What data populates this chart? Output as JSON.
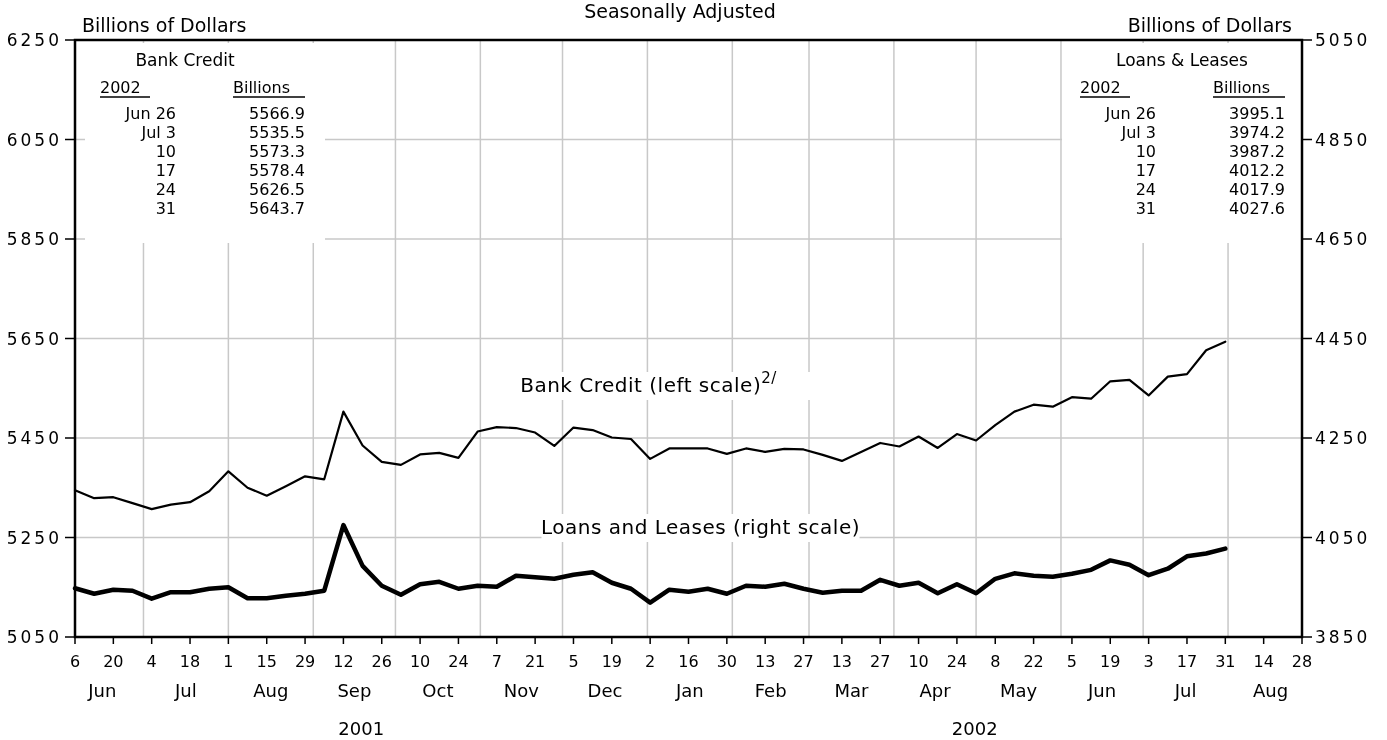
{
  "chart_data": {
    "type": "line",
    "title": "Seasonally Adjusted",
    "ylabel": "Billions of Dollars",
    "y2label": "Billions of Dollars",
    "x": [
      "2001-06-06",
      "2001-06-13",
      "2001-06-20",
      "2001-06-27",
      "2001-07-04",
      "2001-07-11",
      "2001-07-18",
      "2001-07-25",
      "2001-08-01",
      "2001-08-08",
      "2001-08-15",
      "2001-08-22",
      "2001-08-29",
      "2001-09-05",
      "2001-09-12",
      "2001-09-19",
      "2001-09-26",
      "2001-10-03",
      "2001-10-10",
      "2001-10-17",
      "2001-10-24",
      "2001-10-31",
      "2001-11-07",
      "2001-11-14",
      "2001-11-21",
      "2001-11-28",
      "2001-12-05",
      "2001-12-12",
      "2001-12-19",
      "2001-12-26",
      "2002-01-02",
      "2002-01-09",
      "2002-01-16",
      "2002-01-23",
      "2002-01-30",
      "2002-02-06",
      "2002-02-13",
      "2002-02-20",
      "2002-02-27",
      "2002-03-06",
      "2002-03-13",
      "2002-03-20",
      "2002-03-27",
      "2002-04-03",
      "2002-04-10",
      "2002-04-17",
      "2002-04-24",
      "2002-05-01",
      "2002-05-08",
      "2002-05-15",
      "2002-05-22",
      "2002-05-29",
      "2002-06-05",
      "2002-06-12",
      "2002-06-19",
      "2002-06-26",
      "2002-07-03",
      "2002-07-10",
      "2002-07-17",
      "2002-07-24",
      "2002-07-31"
    ],
    "series": [
      {
        "color": "#000000",
        "values": [
          5345,
          5329,
          5331,
          5319,
          5307,
          5316,
          5321,
          5343,
          5383,
          5350,
          5334,
          5353,
          5373,
          5367,
          5503,
          5435,
          5402,
          5396,
          5417,
          5420,
          5410,
          5463,
          5472,
          5470,
          5461,
          5434,
          5471,
          5466,
          5451,
          5448,
          5408,
          5429,
          5429,
          5429,
          5418,
          5429,
          5422,
          5428,
          5427,
          5416,
          5404,
          5422,
          5440,
          5433,
          5453,
          5430,
          5458,
          5445,
          5476,
          5503,
          5517,
          5513,
          5532,
          5529,
          5564,
          5566.9,
          5535.5,
          5573.3,
          5578.4,
          5626.5,
          5643.7
        ]
      },
      {
        "color": "#000000",
        "axis": "y2",
        "values": [
          3948,
          3937,
          3945,
          3943,
          3927,
          3940,
          3940,
          3947,
          3950,
          3928,
          3928,
          3933,
          3937,
          3943,
          4075,
          3993,
          3953,
          3935,
          3956,
          3961,
          3947,
          3953,
          3951,
          3973,
          3970,
          3967,
          3975,
          3980,
          3959,
          3947,
          3919,
          3945,
          3941,
          3947,
          3937,
          3953,
          3951,
          3957,
          3947,
          3939,
          3943,
          3943,
          3965,
          3953,
          3959,
          3938,
          3956,
          3938,
          3967,
          3978,
          3973,
          3971,
          3977,
          3985,
          4004,
          3995.1,
          3974.2,
          3987.2,
          4012.2,
          4017.9,
          4027.6
        ]
      }
    ],
    "xlim": [
      "2001-06-06",
      "2002-08-28"
    ],
    "xticks": [
      {
        "value": "2001-06-06",
        "label": "6"
      },
      {
        "value": "2001-06-20",
        "label": "20"
      },
      {
        "value": "2001-07-04",
        "label": "4"
      },
      {
        "value": "2001-07-18",
        "label": "18"
      },
      {
        "value": "2001-08-01",
        "label": "1"
      },
      {
        "value": "2001-08-15",
        "label": "15"
      },
      {
        "value": "2001-08-29",
        "label": "29"
      },
      {
        "value": "2001-09-12",
        "label": "12"
      },
      {
        "value": "2001-09-26",
        "label": "26"
      },
      {
        "value": "2001-10-10",
        "label": "10"
      },
      {
        "value": "2001-10-24",
        "label": "24"
      },
      {
        "value": "2001-11-07",
        "label": "7"
      },
      {
        "value": "2001-11-21",
        "label": "21"
      },
      {
        "value": "2001-12-05",
        "label": "5"
      },
      {
        "value": "2001-12-19",
        "label": "19"
      },
      {
        "value": "2002-01-02",
        "label": "2"
      },
      {
        "value": "2002-01-16",
        "label": "16"
      },
      {
        "value": "2002-01-30",
        "label": "30"
      },
      {
        "value": "2002-02-13",
        "label": "13"
      },
      {
        "value": "2002-02-27",
        "label": "27"
      },
      {
        "value": "2002-03-13",
        "label": "13"
      },
      {
        "value": "2002-03-27",
        "label": "27"
      },
      {
        "value": "2002-04-10",
        "label": "10"
      },
      {
        "value": "2002-04-24",
        "label": "24"
      },
      {
        "value": "2002-05-08",
        "label": "8"
      },
      {
        "value": "2002-05-22",
        "label": "22"
      },
      {
        "value": "2002-06-05",
        "label": "5"
      },
      {
        "value": "2002-06-19",
        "label": "19"
      },
      {
        "value": "2002-07-03",
        "label": "3"
      },
      {
        "value": "2002-07-17",
        "label": "17"
      },
      {
        "value": "2002-07-31",
        "label": "31"
      },
      {
        "value": "2002-08-14",
        "label": "14"
      },
      {
        "value": "2002-08-28",
        "label": "28"
      }
    ],
    "ylim": [
      5050,
      6250
    ],
    "yticks": [
      5050,
      5250,
      5450,
      5650,
      5850,
      6050,
      6250
    ],
    "y2lim": [
      3850,
      5050
    ],
    "y2ticks": [
      3850,
      4050,
      4250,
      4450,
      4650,
      4850,
      5050
    ],
    "grid": true,
    "line_style": "solid",
    "marker": "none",
    "annotations": [
      "Bank Credit (left scale)$^{2/}$",
      "Loans and Leases (right scale)",
      "Jun",
      "Jul",
      "Aug",
      "Sep",
      "Oct",
      "Nov",
      "Dec",
      "Jan",
      "Feb",
      "Mar",
      "Apr",
      "May",
      "Jun",
      "Jul",
      "Aug",
      "2001",
      "2002",
      "Bank Credit",
      "2002",
      "Billions",
      "Jun 26",
      "Jul 3",
      "10",
      "17",
      "24",
      "31",
      "5566.9",
      "5535.5",
      "5573.3",
      "5578.4",
      "5626.5",
      "5643.7",
      "Loans & Leases",
      "2002",
      "Billions",
      "Jun 26",
      "Jul 3",
      "10",
      "17",
      "24",
      "31",
      "3995.1",
      "3974.2",
      "3987.2",
      "4012.2",
      "4017.9",
      "4027.6"
    ]
  }
}
